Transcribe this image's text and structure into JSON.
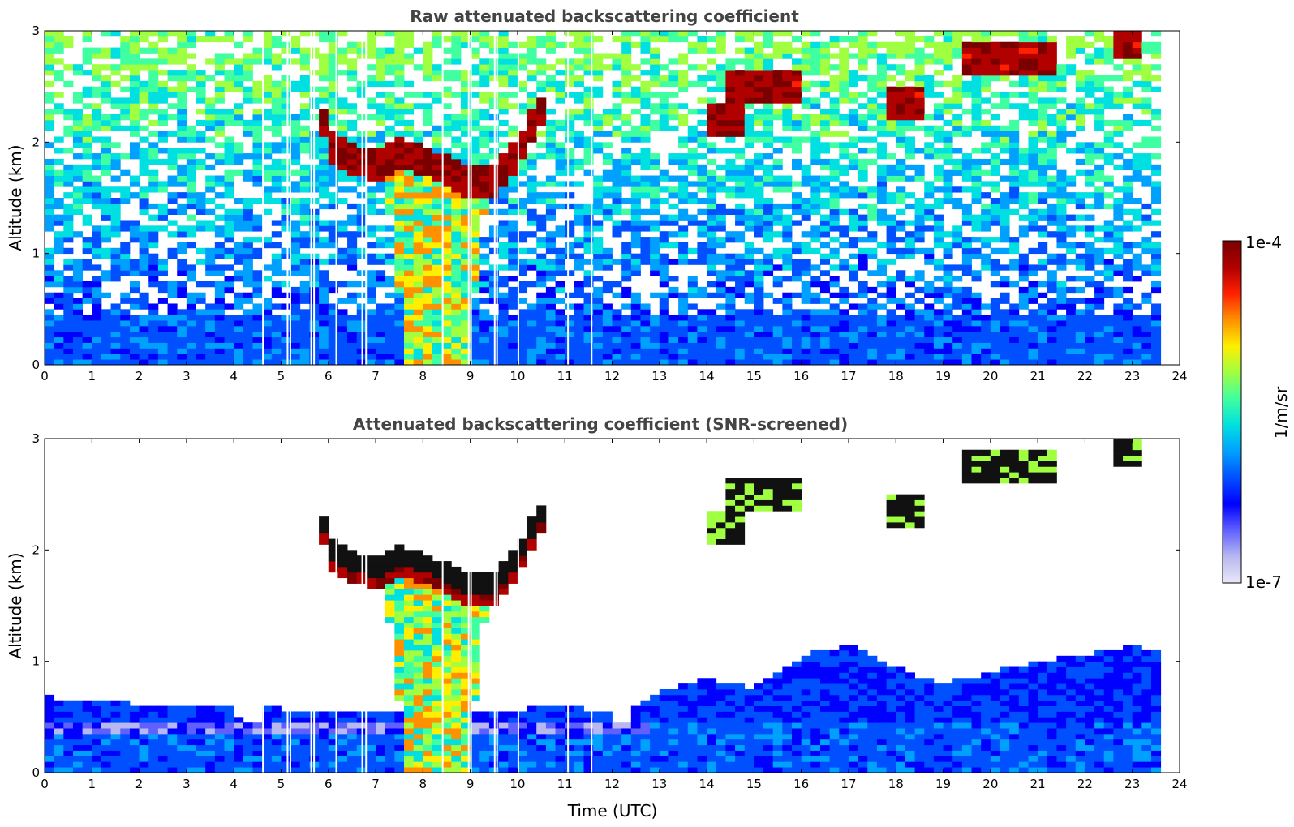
{
  "chart_data": [
    {
      "type": "heatmap",
      "title": "Raw attenuated backscattering coefficient",
      "xlabel": "",
      "ylabel": "Altitude (km)",
      "xlim": [
        0,
        24
      ],
      "ylim": [
        0,
        3
      ],
      "xticks": [
        "0",
        "1",
        "2",
        "3",
        "4",
        "5",
        "6",
        "7",
        "8",
        "9",
        "10",
        "11",
        "12",
        "13",
        "14",
        "15",
        "16",
        "17",
        "18",
        "19",
        "20",
        "21",
        "22",
        "23",
        "24"
      ],
      "yticks": [
        "0",
        "1",
        "2",
        "3"
      ],
      "data_end_time": 23.6,
      "gaps": [
        4.6,
        5.12,
        5.18,
        5.62,
        5.68,
        6.15,
        6.7,
        6.78,
        8.4,
        8.95,
        9.0,
        9.5,
        9.55,
        10.0,
        11.05,
        11.55
      ],
      "features": [
        {
          "name": "boundary layer",
          "t_start": 0,
          "t_end": 23.6,
          "top_km": 0.45
        },
        {
          "name": "cloud base",
          "points": [
            [
              5.75,
              2.4
            ],
            [
              6.0,
              1.95
            ],
            [
              6.5,
              1.8
            ],
            [
              7.0,
              1.75
            ],
            [
              7.5,
              1.85
            ],
            [
              8.0,
              1.8
            ],
            [
              8.5,
              1.7
            ],
            [
              9.0,
              1.6
            ],
            [
              9.5,
              1.62
            ],
            [
              10.0,
              1.85
            ],
            [
              10.3,
              2.1
            ],
            [
              10.6,
              2.3
            ]
          ]
        },
        {
          "name": "precipitation",
          "t_start": 7.2,
          "t_end": 9.3
        },
        {
          "name": "elevated layer",
          "t_start": 14.2,
          "t_end": 14.6,
          "alt_km": 2.2
        },
        {
          "name": "elevated layer",
          "t_start": 14.7,
          "t_end": 15.8,
          "alt_km": 2.5
        },
        {
          "name": "elevated layer",
          "t_start": 18.05,
          "t_end": 18.35,
          "alt_km": 2.35
        },
        {
          "name": "elevated layer",
          "t_start": 19.7,
          "t_end": 21.3,
          "alt_km": 2.75
        },
        {
          "name": "elevated layer",
          "t_start": 22.8,
          "t_end": 23.1,
          "alt_km": 2.9
        }
      ]
    },
    {
      "type": "heatmap",
      "title": "Attenuated backscattering coefficient (SNR-screened)",
      "xlabel": "Time (UTC)",
      "ylabel": "Altitude (km)",
      "xlim": [
        0,
        24
      ],
      "ylim": [
        0,
        3
      ],
      "xticks": [
        "0",
        "1",
        "2",
        "3",
        "4",
        "5",
        "6",
        "7",
        "8",
        "9",
        "10",
        "11",
        "12",
        "13",
        "14",
        "15",
        "16",
        "17",
        "18",
        "19",
        "20",
        "21",
        "22",
        "23",
        "24"
      ],
      "yticks": [
        "0",
        "1",
        "2",
        "3"
      ],
      "data_end_time": 23.6,
      "screened_top_km": [
        [
          0,
          0.68
        ],
        [
          2,
          0.62
        ],
        [
          4,
          0.58
        ],
        [
          4.5,
          0.28
        ],
        [
          4.7,
          0.58
        ],
        [
          7,
          0.55
        ],
        [
          9.5,
          0.55
        ],
        [
          11,
          0.6
        ],
        [
          12,
          0.55
        ],
        [
          12.2,
          0.3
        ],
        [
          12.4,
          0.6
        ],
        [
          13,
          0.72
        ],
        [
          14,
          0.85
        ],
        [
          15,
          0.75
        ],
        [
          16,
          1.05
        ],
        [
          17,
          1.15
        ],
        [
          18,
          0.95
        ],
        [
          19,
          0.8
        ],
        [
          20,
          0.9
        ],
        [
          21,
          1.0
        ],
        [
          22,
          1.05
        ],
        [
          23,
          1.15
        ],
        [
          23.6,
          1.1
        ]
      ]
    }
  ],
  "colorbar": {
    "label": "1/m/sr",
    "max_label": "1e-4",
    "min_label": "1e-7",
    "colors": [
      "#e8e8f8",
      "#b8b8f0",
      "#6060ff",
      "#0000ff",
      "#0050ff",
      "#00a0ff",
      "#00e0e0",
      "#40ffa0",
      "#a0ff40",
      "#ffee00",
      "#ff9000",
      "#ff2000",
      "#b00000",
      "#7a0000"
    ]
  }
}
